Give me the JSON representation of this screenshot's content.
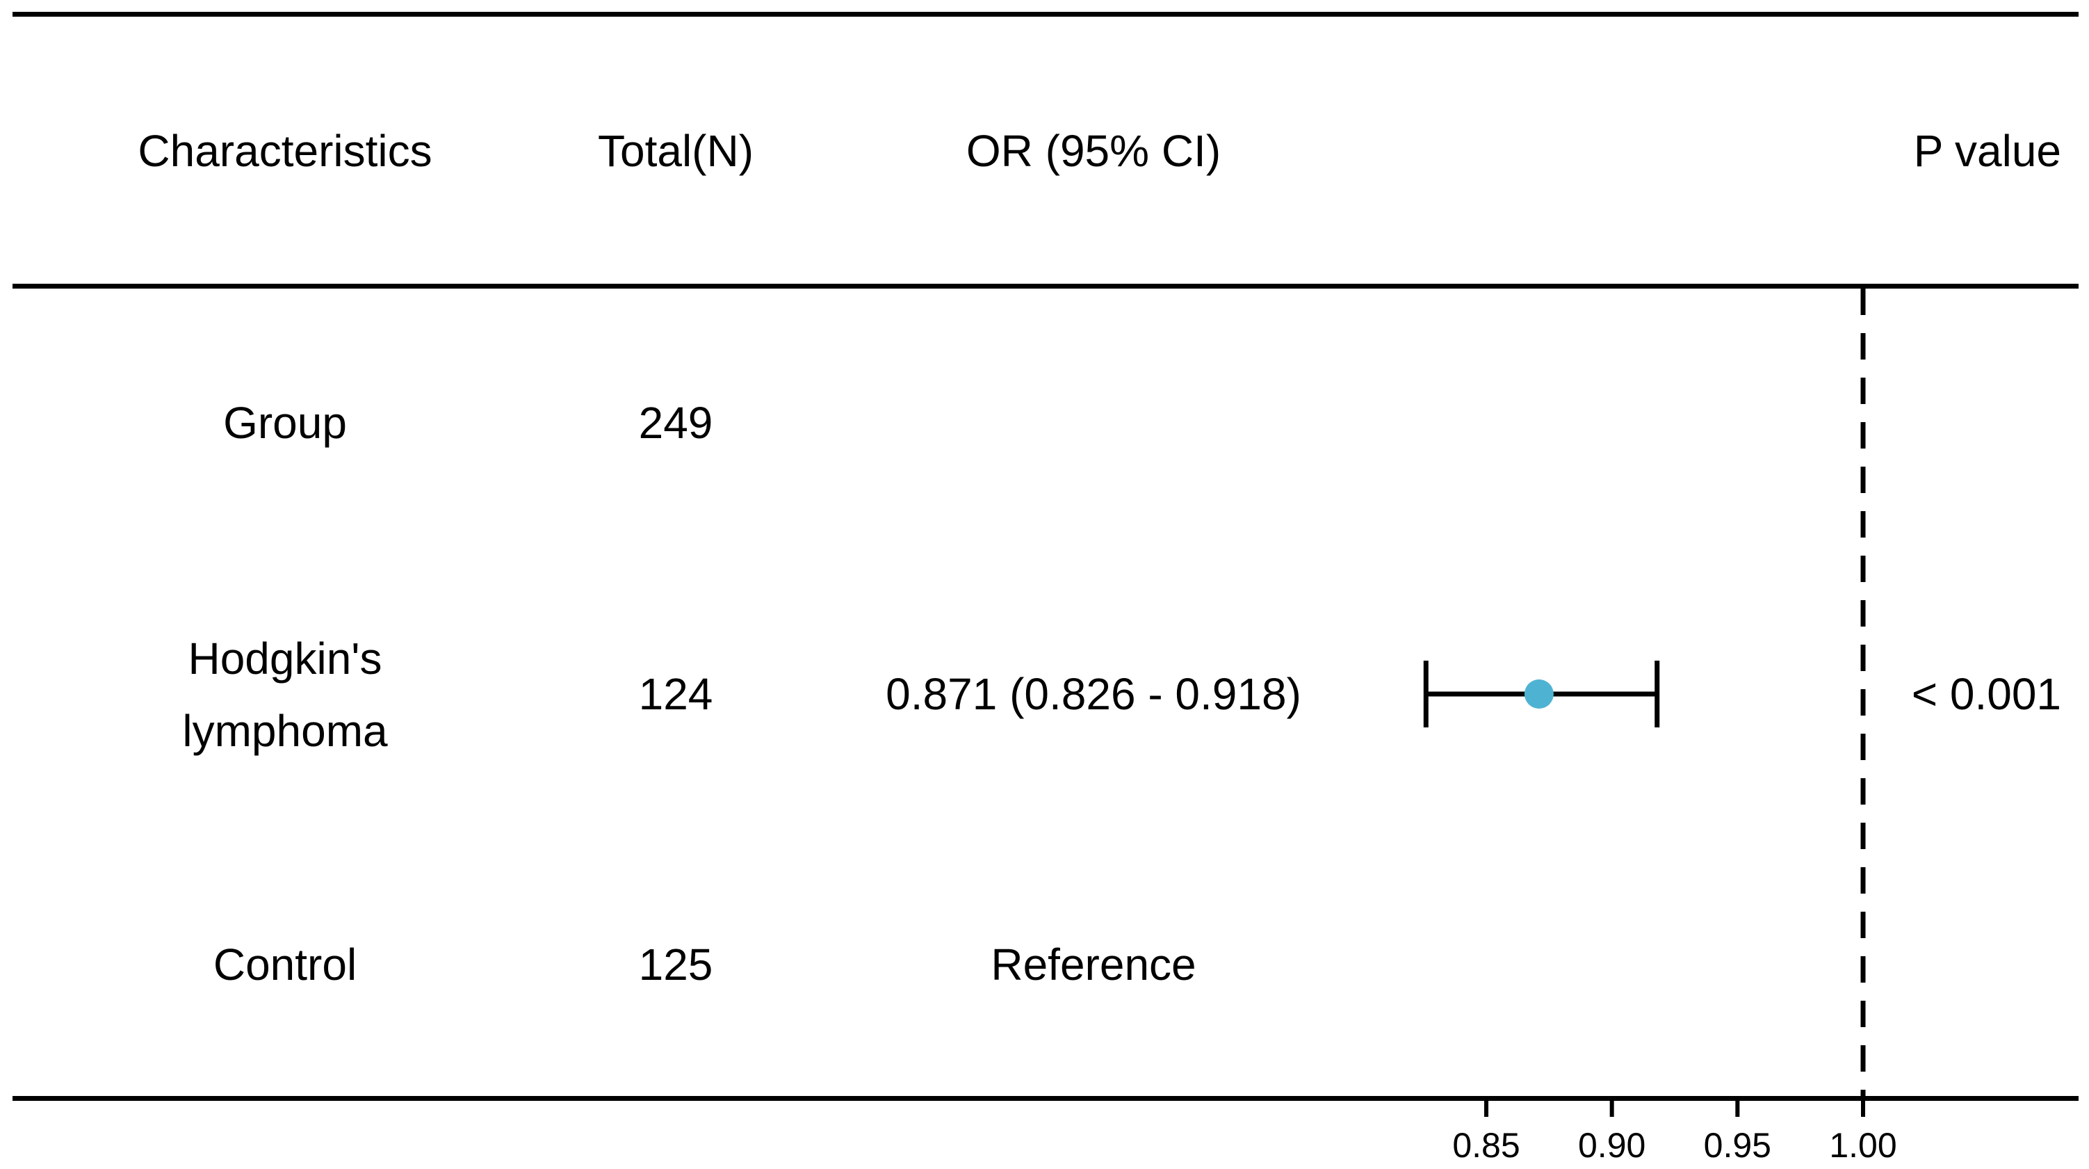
{
  "table": {
    "headers": {
      "characteristics": "Characteristics",
      "total": "Total(N)",
      "or_ci": "OR (95% CI)",
      "p_value": "P value"
    },
    "rows": [
      {
        "characteristic": "Group",
        "total": "249",
        "or_ci": "",
        "p_value": ""
      },
      {
        "characteristic_line1": "Hodgkin's",
        "characteristic_line2": "lymphoma",
        "total": "124",
        "or_ci": "0.871 (0.826 - 0.918)",
        "p_value": "< 0.001"
      },
      {
        "characteristic": "Control",
        "total": "125",
        "or_ci": "Reference",
        "p_value": ""
      }
    ]
  },
  "chart_data": {
    "type": "forest",
    "points": [
      {
        "row": "Hodgkin's lymphoma",
        "or": 0.871,
        "ci_low": 0.826,
        "ci_high": 0.918
      }
    ],
    "reference_line": 1.0,
    "x_ticks": [
      "0.85",
      "0.90",
      "0.95",
      "1.00"
    ],
    "x_tick_values": [
      0.85,
      0.9,
      0.95,
      1.0
    ],
    "xlim": [
      0.8,
      1.06
    ],
    "colors": {
      "point": "#4eb3d3",
      "lines": "#000000"
    }
  }
}
